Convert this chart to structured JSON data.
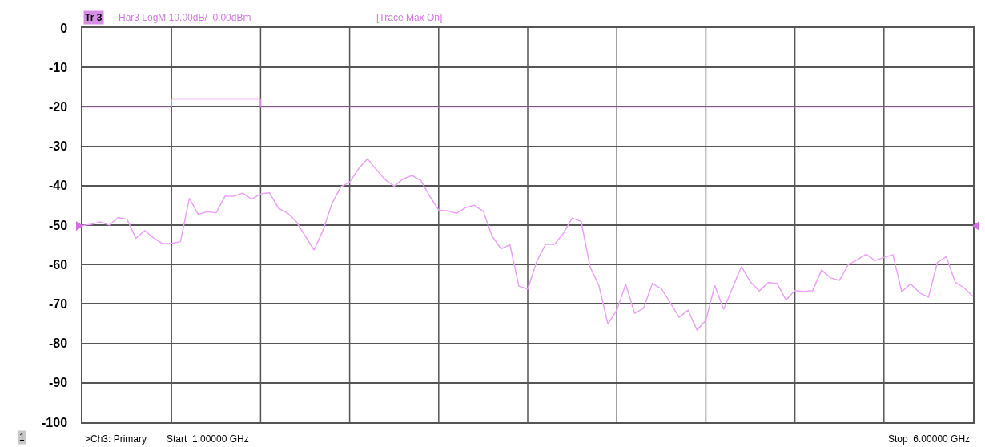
{
  "chart_data": {
    "type": "line",
    "categories": [
      null,
      null,
      null,
      null,
      null,
      null,
      null,
      null,
      null,
      null,
      null,
      null,
      null,
      null,
      null,
      null,
      null,
      null,
      null,
      null,
      null,
      null,
      null,
      null,
      null,
      null,
      null,
      null,
      null,
      null,
      null,
      null,
      null,
      null,
      null,
      null,
      null,
      null,
      null,
      null,
      null,
      null,
      null,
      null,
      null,
      null,
      null,
      null,
      null,
      null,
      null,
      null,
      null,
      null,
      null,
      null,
      null,
      null,
      null,
      null,
      null,
      null,
      null,
      null,
      null,
      null,
      null,
      null,
      null,
      null,
      null,
      null,
      null,
      null,
      null,
      null,
      null,
      null,
      null,
      null,
      null,
      null,
      null,
      null,
      null,
      null,
      null,
      null,
      null,
      null,
      null,
      null,
      null,
      null,
      null,
      null,
      null,
      null,
      null,
      null,
      null
    ],
    "series": [
      {
        "color": "#eaa2f7",
        "values": [
          -50.1,
          -49.8,
          -49.2,
          -50.0,
          -48.1,
          -48.5,
          -53.3,
          -51.4,
          -53.3,
          -54.7,
          -54.6,
          -54.2,
          -43.2,
          -47.3,
          -46.6,
          -46.9,
          -42.7,
          -42.7,
          -41.9,
          -43.4,
          -42.1,
          -41.8,
          -45.7,
          -46.9,
          -49.1,
          -52.7,
          -56.3,
          -51.4,
          -44.6,
          -40.3,
          -39.1,
          -35.7,
          -33.2,
          -35.9,
          -38.5,
          -40.1,
          -38.3,
          -37.4,
          -38.7,
          -42.7,
          -46.2,
          -46.4,
          -47.0,
          -45.6,
          -45.0,
          -46.5,
          -52.8,
          -56.0,
          -55.0,
          -65.5,
          -66.2,
          -59.3,
          -54.9,
          -54.9,
          -52.1,
          -48.2,
          -49.1,
          -60.6,
          -65.4,
          -75.1,
          -71.6,
          -65.0,
          -72.4,
          -71.1,
          -64.8,
          -66.1,
          -69.7,
          -73.4,
          -71.6,
          -76.6,
          -74.2,
          -65.3,
          -71.4,
          -65.9,
          -60.5,
          -64.4,
          -66.7,
          -64.6,
          -64.8,
          -69.0,
          -66.6,
          -66.8,
          -66.6,
          -61.4,
          -63.4,
          -64.0,
          -60.0,
          -58.8,
          -57.4,
          -59.0,
          -58.2,
          -57.5,
          -66.9,
          -64.9,
          -67.2,
          -68.3,
          -59.5,
          -58.0,
          -64.5,
          -65.9,
          -68.1
        ]
      },
      {
        "type": "step",
        "color": "#e07ce8",
        "values": [
          -20,
          -20,
          -20,
          -20,
          -20,
          -20,
          -20,
          -20,
          -20,
          -20,
          -18,
          -18,
          -18,
          -18,
          -18,
          -18,
          -18,
          -18,
          -18,
          -18,
          -20,
          -20,
          -20,
          -20,
          -20,
          -20,
          -20,
          -20,
          -20,
          -20,
          -20,
          -20,
          -20,
          -20,
          -20,
          -20,
          -20,
          -20,
          -20,
          -20,
          -20,
          -20,
          -20,
          -20,
          -20,
          -20,
          -20,
          -20,
          -20,
          -20,
          -20,
          -20,
          -20,
          -20,
          -20,
          -20,
          -20,
          -20,
          -20,
          -20,
          -20,
          -20,
          -20,
          -20,
          -20,
          -20,
          -20,
          -20,
          -20,
          -20,
          -20,
          -20,
          -20,
          -20,
          -20,
          -20,
          -20,
          -20,
          -20,
          -20,
          -20,
          -20,
          -20,
          -20,
          -20,
          -20,
          -20,
          -20,
          -20,
          -20,
          -20,
          -20,
          -20,
          -20,
          -20,
          -20,
          -20,
          -20,
          -20,
          -20,
          -20
        ]
      }
    ],
    "ylim": [
      -100,
      0
    ],
    "yticks": [
      -100,
      -90,
      -80,
      -70,
      -60,
      -50,
      -40,
      -30,
      -20,
      -10,
      0
    ],
    "grid": true,
    "marker": "none",
    "line_style": "solid",
    "annotations": [
      "Tr 3",
      "Har3 LogM 10.00dB/  0.00dBm",
      "[Trace Max On]",
      "1",
      ">Ch3: Primary",
      "Start  1.00000 GHz",
      "Stop  6.00000 GHz"
    ]
  }
}
